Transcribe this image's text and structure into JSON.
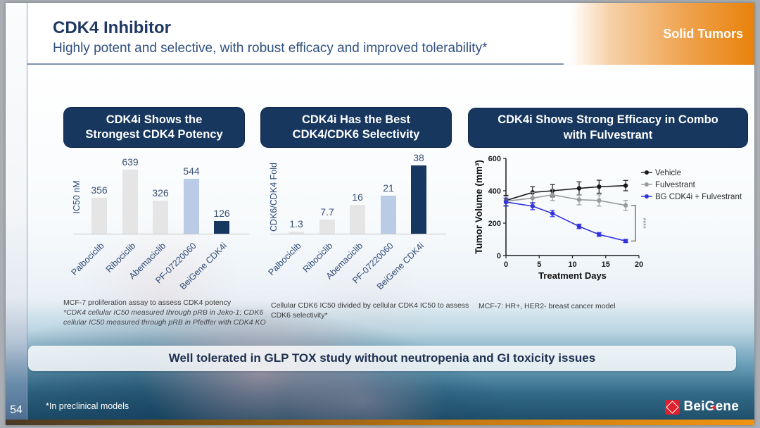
{
  "slide": {
    "page_number": "54",
    "title": "CDK4 Inhibitor",
    "subtitle": "Highly potent and selective, with robust efficacy and improved tolerability*",
    "badge": "Solid Tumors",
    "banner": "Well tolerated in GLP TOX study without neutropenia and GI toxicity issues",
    "footnote_left": "*In preclinical models",
    "logo": {
      "pre": "Bei",
      "g": "G",
      "post": "ene"
    }
  },
  "panels": [
    {
      "header_line1": "CDK4i Shows the",
      "header_line2": "Strongest CDK4 Potency",
      "footnote_main": "MCF-7 proliferation assay to assess CDK4 potency",
      "footnote_italic": "*CDK4 cellular IC50 measured through pRB in Jeko-1; CDK6 cellular IC50 measured through pRB in Pfeiffer with CDK4 KO"
    },
    {
      "header_line1": "CDK4i Has the Best",
      "header_line2": "CDK4/CDK6 Selectivity",
      "footnote_main": "Cellular CDK6 IC50 divided by cellular CDK4 IC50 to assess CDK6 selectivity*",
      "footnote_italic": ""
    },
    {
      "header_line1": "CDK4i Shows Strong Efficacy in Combo",
      "header_line2": "with Fulvestrant",
      "footnote_main": "MCF-7: HR+, HER2- breast cancer model",
      "footnote_italic": ""
    }
  ],
  "colors": {
    "navy_header": "#17375e",
    "orange": "#e8820b",
    "bar_gray": "#e5e5e5",
    "bar_lightblue": "#b9cbe5",
    "bar_navy": "#16375f",
    "line_black": "#1a1a1a",
    "line_gray": "#9a9a9a",
    "line_blue": "#3232dd"
  },
  "chart_data": [
    {
      "type": "bar",
      "title": "CDK4i Shows the Strongest CDK4 Potency",
      "ylabel": "IC50 nM",
      "xlabel": "",
      "categories": [
        "Palbociclib",
        "Ribociclib",
        "Abemaciclib",
        "PF-07220060",
        "BeiGene CDK4i"
      ],
      "values": [
        356,
        639,
        326,
        544,
        126
      ],
      "bar_colors": [
        "bar_gray",
        "bar_gray",
        "bar_gray",
        "bar_lightblue",
        "bar_navy"
      ],
      "ylim": [
        0,
        750
      ],
      "grid": false,
      "value_labels": true
    },
    {
      "type": "bar",
      "title": "CDK4i Has the Best CDK4/CDK6 Selectivity",
      "ylabel": "CDK6/CDK4 Fold",
      "xlabel": "",
      "categories": [
        "Palbociclib",
        "Ribociclib",
        "Abemaciclib",
        "PF-07220060",
        "BeiGene CDK4i"
      ],
      "values": [
        1.3,
        7.7,
        16,
        21,
        38
      ],
      "bar_colors": [
        "bar_gray",
        "bar_gray",
        "bar_gray",
        "bar_lightblue",
        "bar_navy"
      ],
      "ylim": [
        0,
        42
      ],
      "grid": false,
      "value_labels": true
    },
    {
      "type": "line",
      "title": "CDK4i Shows Strong Efficacy in Combo with Fulvestrant",
      "xlabel": "Treatment Days",
      "ylabel": "Tumor Volume (mm³)",
      "xlim": [
        0,
        20
      ],
      "ylim": [
        0,
        600
      ],
      "xticks": [
        0,
        5,
        10,
        15,
        20
      ],
      "yticks": [
        0,
        200,
        400,
        600
      ],
      "x": [
        0,
        4,
        7,
        11,
        14,
        18
      ],
      "series": [
        {
          "name": "Vehicle",
          "color_key": "line_black",
          "values": [
            340,
            390,
            400,
            415,
            425,
            432
          ],
          "err": [
            32,
            35,
            38,
            40,
            40,
            32
          ]
        },
        {
          "name": "Fulvestrant",
          "color_key": "line_gray",
          "values": [
            335,
            355,
            375,
            345,
            340,
            310
          ],
          "err": [
            30,
            35,
            35,
            32,
            35,
            30
          ]
        },
        {
          "name": "BG CDK4i + Fulvestrant",
          "color_key": "line_blue",
          "values": [
            330,
            305,
            260,
            180,
            130,
            90
          ],
          "err": [
            25,
            22,
            20,
            14,
            12,
            10
          ]
        }
      ],
      "significance": "****",
      "legend_position": "right",
      "grid": false
    }
  ]
}
